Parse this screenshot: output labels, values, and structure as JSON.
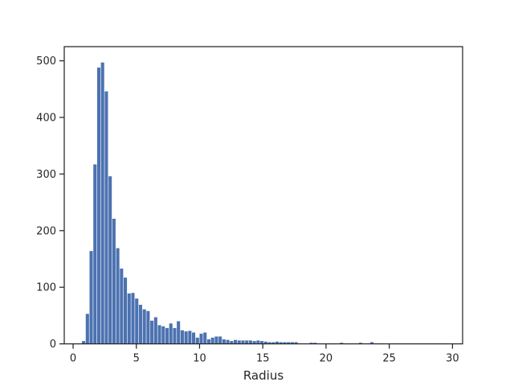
{
  "chart_data": {
    "type": "bar",
    "title": "",
    "xlabel": "Radius",
    "ylabel": "",
    "xlim": [
      -0.7,
      30.8
    ],
    "ylim": [
      0,
      525
    ],
    "xticks": [
      0,
      5,
      10,
      15,
      20,
      25,
      30
    ],
    "yticks": [
      0,
      100,
      200,
      300,
      400,
      500
    ],
    "grid": false,
    "legend": "none",
    "bin_width": 0.31,
    "bar_color": "#4c72b0",
    "bins": [
      0.7,
      1.0,
      1.3,
      1.6,
      1.9,
      2.2,
      2.5,
      2.8,
      3.1,
      3.4,
      3.7,
      4.0,
      4.3,
      4.6,
      4.9,
      5.2,
      5.5,
      5.8,
      6.1,
      6.4,
      6.7,
      7.0,
      7.3,
      7.6,
      7.9,
      8.2,
      8.5,
      8.8,
      9.1,
      9.4,
      9.7,
      10.0,
      10.3,
      10.6,
      10.9,
      11.2,
      11.5,
      11.8,
      12.1,
      12.4,
      12.7,
      13.0,
      13.3,
      13.6,
      13.9,
      14.2,
      14.5,
      14.8,
      15.1,
      15.4,
      15.7,
      16.0,
      16.3,
      16.6,
      16.9,
      17.2,
      17.5,
      18.7,
      19.0,
      21.1,
      22.6,
      23.5
    ],
    "values": [
      5,
      53,
      164,
      317,
      488,
      497,
      446,
      296,
      221,
      169,
      133,
      117,
      89,
      90,
      80,
      69,
      61,
      58,
      41,
      47,
      33,
      31,
      28,
      36,
      28,
      40,
      24,
      22,
      23,
      20,
      11,
      18,
      20,
      8,
      11,
      13,
      13,
      8,
      7,
      5,
      7,
      6,
      6,
      6,
      6,
      5,
      6,
      5,
      4,
      3,
      3,
      4,
      3,
      3,
      3,
      3,
      3,
      2,
      2,
      2,
      2,
      3
    ]
  }
}
